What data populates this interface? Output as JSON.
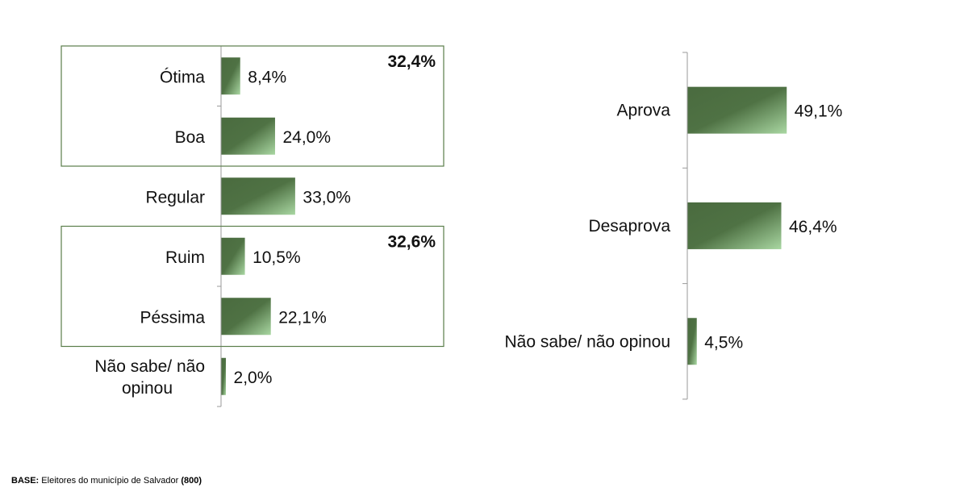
{
  "chart_data": [
    {
      "type": "bar",
      "orientation": "horizontal",
      "categories": [
        "Ótima",
        "Boa",
        "Regular",
        "Ruim",
        "Péssima",
        "Não sabe/ não opinou"
      ],
      "values": [
        8.4,
        24.0,
        33.0,
        10.5,
        22.1,
        2.0
      ],
      "value_labels": [
        "8,4%",
        "24,0%",
        "33,0%",
        "10,5%",
        "22,1%",
        "2,0%"
      ],
      "xlim": [
        0,
        100
      ],
      "groups": [
        {
          "members": [
            "Ótima",
            "Boa"
          ],
          "total_label": "32,4%"
        },
        {
          "members": [
            "Ruim",
            "Péssima"
          ],
          "total_label": "32,6%"
        }
      ],
      "grid": false,
      "colors": {
        "bar_dark": "#4a6b3f",
        "bar_light": "#a9d7a2",
        "group_border": "#5a7d4a"
      }
    },
    {
      "type": "bar",
      "orientation": "horizontal",
      "categories": [
        "Aprova",
        "Desaprova",
        "Não sabe/ não opinou"
      ],
      "values": [
        49.1,
        46.4,
        4.5
      ],
      "value_labels": [
        "49,1%",
        "46,4%",
        "4,5%"
      ],
      "xlim": [
        0,
        100
      ],
      "grid": false,
      "colors": {
        "bar_dark": "#4a6b3f",
        "bar_light": "#a9d7a2"
      }
    }
  ],
  "footer": {
    "base_label": "BASE:",
    "base_text": " Eleitores do município de Salvador ",
    "base_count": "(800)"
  }
}
